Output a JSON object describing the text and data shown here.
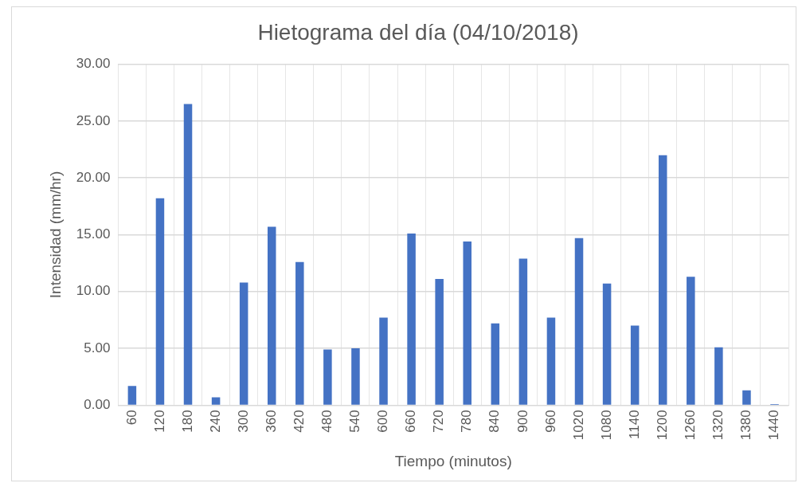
{
  "chart_data": {
    "type": "bar",
    "title": "Hietograma del día (04/10/2018)",
    "xlabel": "Tiempo (minutos)",
    "ylabel": "Intensidad (mm/hr)",
    "categories": [
      "60",
      "120",
      "180",
      "240",
      "300",
      "360",
      "420",
      "480",
      "540",
      "600",
      "660",
      "720",
      "780",
      "840",
      "900",
      "960",
      "1020",
      "1080",
      "1140",
      "1200",
      "1260",
      "1320",
      "1380",
      "1440"
    ],
    "values": [
      1.7,
      18.2,
      26.5,
      0.7,
      10.8,
      15.7,
      12.6,
      4.9,
      5.0,
      7.7,
      15.1,
      11.1,
      14.4,
      7.2,
      12.9,
      7.7,
      14.7,
      10.7,
      7.0,
      22.0,
      11.3,
      5.1,
      1.3,
      0.1
    ],
    "color": "#4472c4",
    "ylim": [
      0,
      30
    ],
    "yticks": [
      {
        "value": 0,
        "label": "0.00"
      },
      {
        "value": 5,
        "label": "5.00"
      },
      {
        "value": 10,
        "label": "10.00"
      },
      {
        "value": 15,
        "label": "15.00"
      },
      {
        "value": 20,
        "label": "20.00"
      },
      {
        "value": 25,
        "label": "25.00"
      },
      {
        "value": 30,
        "label": "30.00"
      }
    ],
    "grid": true
  }
}
